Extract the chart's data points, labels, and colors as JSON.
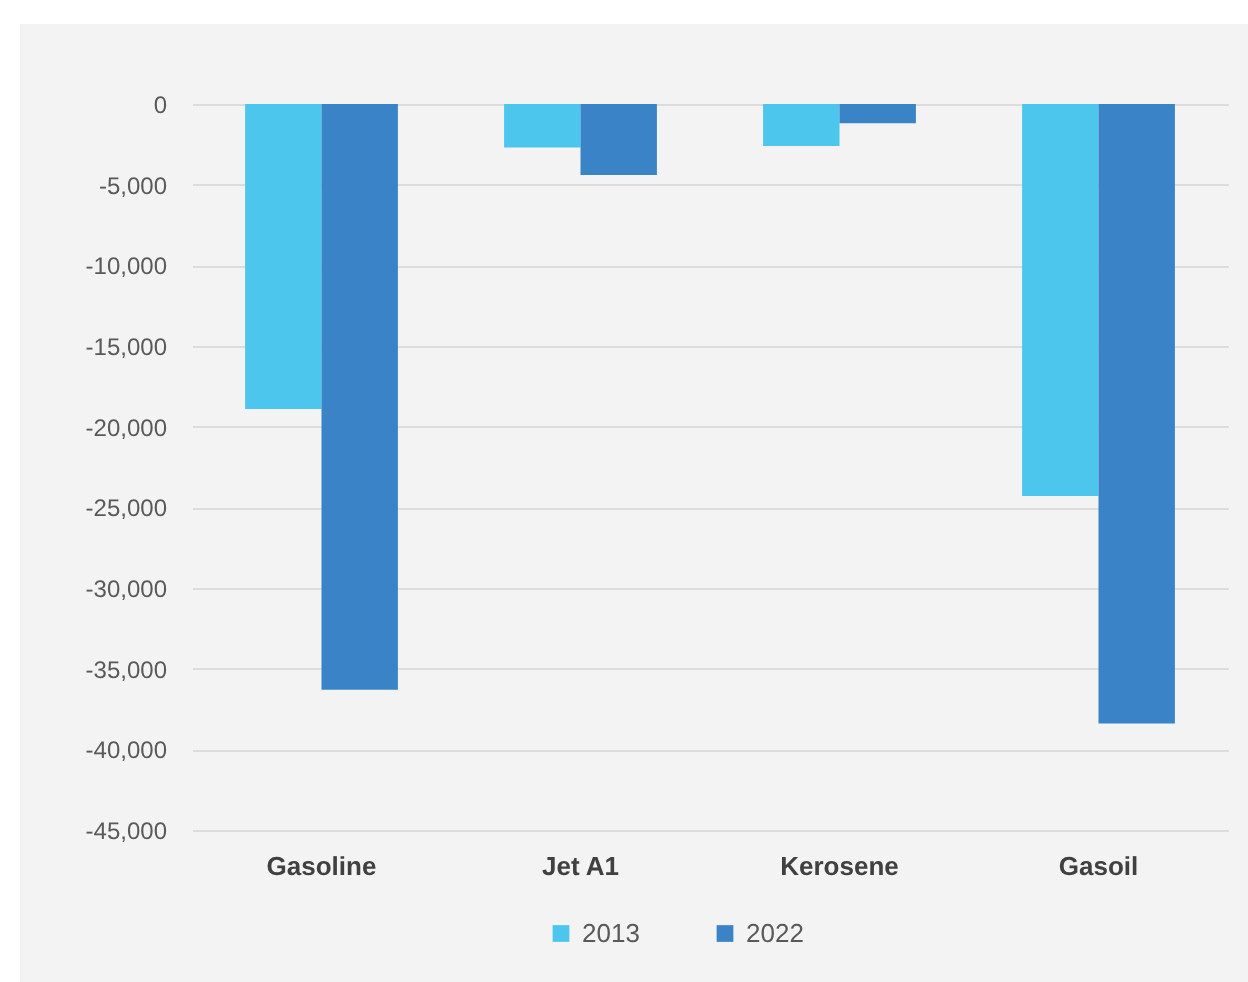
{
  "chart_data": {
    "type": "bar",
    "categories": [
      "Gasoline",
      "Jet A1",
      "Kerosene",
      "Gasoil"
    ],
    "series": [
      {
        "name": "2013",
        "color": "#4dc6ee",
        "values": [
          -18900,
          -2700,
          -2600,
          -24300
        ]
      },
      {
        "name": "2022",
        "color": "#3983c6",
        "values": [
          -36300,
          -4400,
          -1200,
          -38400
        ]
      }
    ],
    "ylim": [
      -45000,
      0
    ],
    "yticks": [
      0,
      {
        "value": -5000,
        "label": "-5,000"
      },
      {
        "value": -10000,
        "label": "-10,000"
      },
      {
        "value": -15000,
        "label": "-15,000"
      },
      {
        "value": -20000,
        "label": "-20,000"
      },
      {
        "value": -25000,
        "label": "-25,000"
      },
      {
        "value": -30000,
        "label": "-30,000"
      },
      {
        "value": -35000,
        "label": "-35,000"
      },
      {
        "value": -40000,
        "label": "-40,000"
      },
      {
        "value": -45000,
        "label": "-45,000"
      }
    ],
    "grid": "y",
    "legend": "bottom"
  }
}
